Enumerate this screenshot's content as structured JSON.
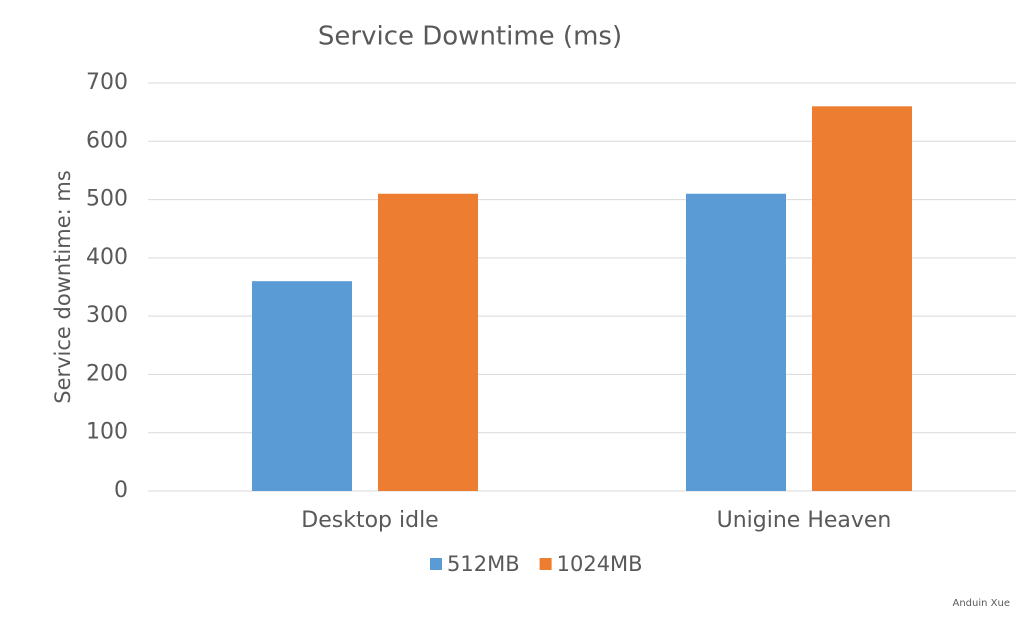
{
  "chart_data": {
    "type": "bar",
    "title": "Service Downtime (ms)",
    "y_label": "Service downtime: ms",
    "categories": [
      "Desktop idle",
      "Unigine Heaven"
    ],
    "series": [
      {
        "name": "512MB",
        "color": "#5b9bd5",
        "values": [
          360,
          510
        ]
      },
      {
        "name": "1024MB",
        "color": "#ed7d31",
        "values": [
          510,
          660
        ]
      }
    ],
    "ylim": [
      0,
      700
    ],
    "yticks": [
      0,
      100,
      200,
      300,
      400,
      500,
      600,
      700
    ],
    "grid": true,
    "legend": "bottom",
    "watermark": "Anduin Xue"
  }
}
